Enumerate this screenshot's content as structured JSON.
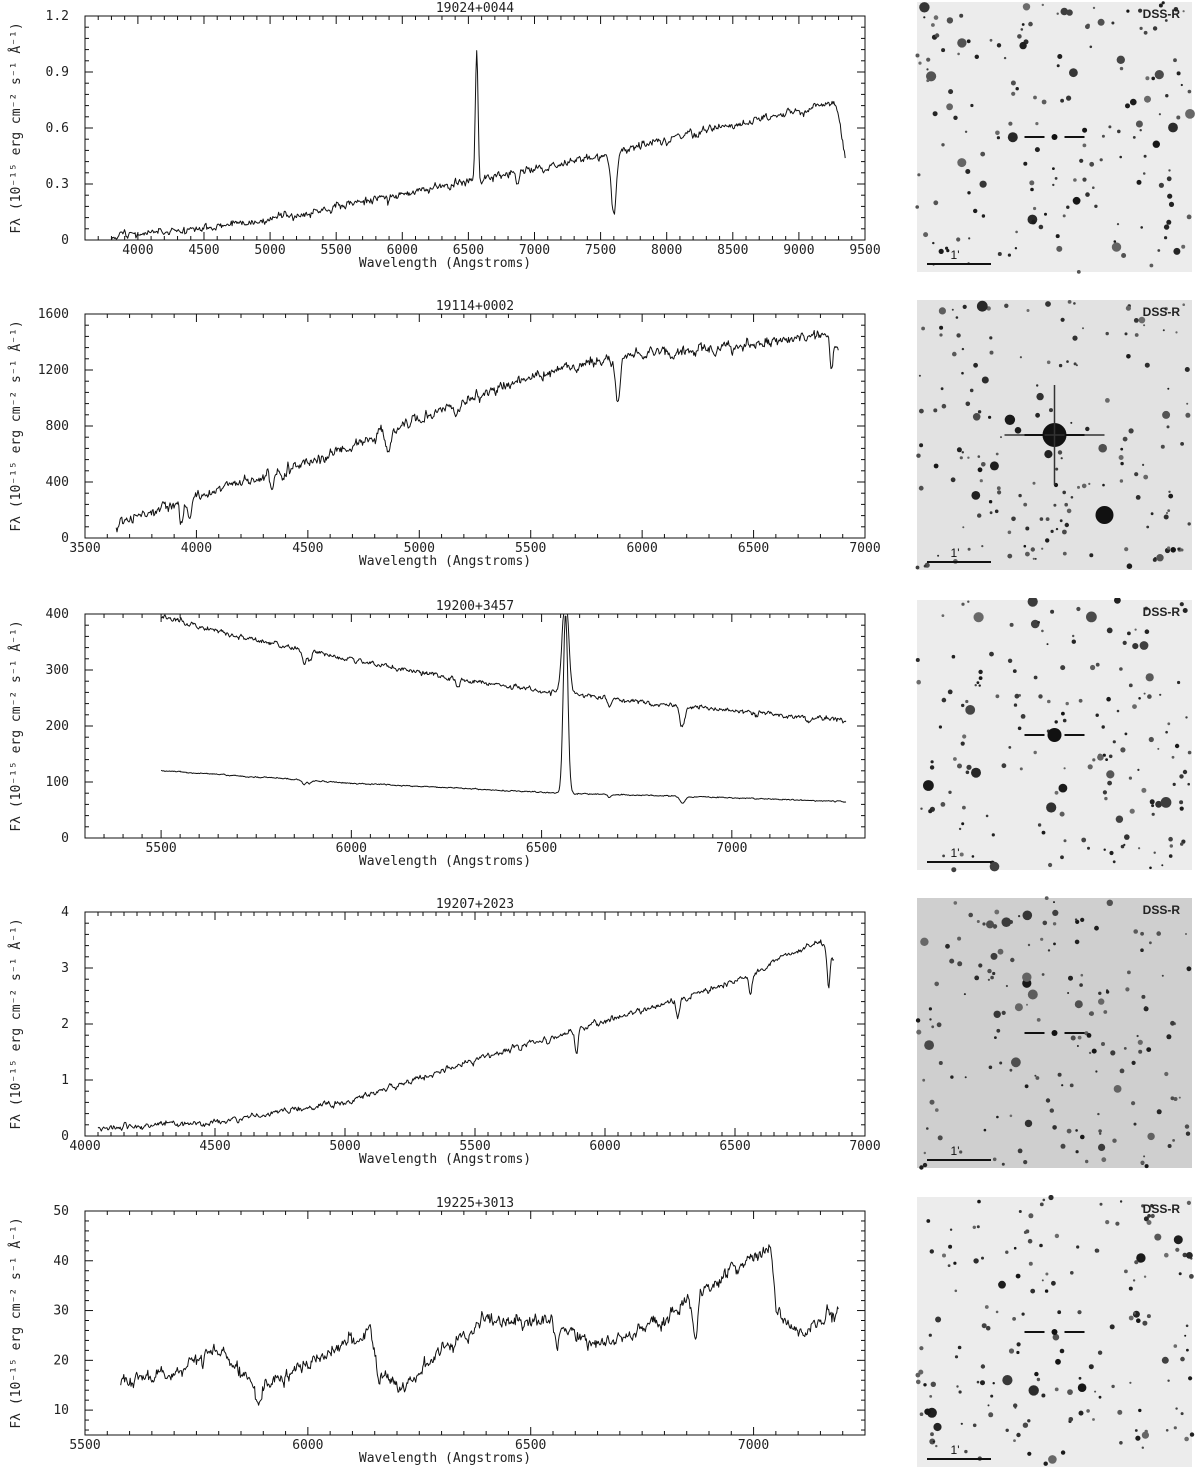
{
  "figure": {
    "survey_label": "DSS-R",
    "scale_label": "1'"
  },
  "chart_data": [
    {
      "type": "line",
      "title": "19024+0044",
      "xlabel": "Wavelength (Angstroms)",
      "ylabel": "Fλ (10⁻¹⁵ erg cm⁻² s⁻¹ Å⁻¹)",
      "xlim": [
        3600,
        9500
      ],
      "ylim": [
        0,
        1.2
      ],
      "xticks": [
        4000,
        4500,
        5000,
        5500,
        6000,
        6500,
        7000,
        7500,
        8000,
        8500,
        9000,
        9500
      ],
      "yticks": [
        0,
        0.3,
        0.6,
        0.9,
        1.2
      ],
      "ytick_labels": [
        "0",
        "0.3",
        "0.6",
        "0.9",
        "1.2"
      ],
      "x_range": [
        3800,
        9350
      ],
      "continuum": [
        [
          3800,
          0.02
        ],
        [
          4500,
          0.06
        ],
        [
          5000,
          0.11
        ],
        [
          5500,
          0.18
        ],
        [
          6000,
          0.25
        ],
        [
          6500,
          0.31
        ],
        [
          7000,
          0.38
        ],
        [
          7500,
          0.45
        ],
        [
          8000,
          0.54
        ],
        [
          8500,
          0.62
        ],
        [
          9000,
          0.69
        ],
        [
          9250,
          0.73
        ],
        [
          9290,
          0.71
        ],
        [
          9350,
          0.45
        ]
      ],
      "features": [
        [
          6563,
          0.72,
          10
        ],
        [
          7600,
          -0.35,
          18
        ],
        [
          6870,
          -0.05,
          10
        ],
        [
          5890,
          -0.03,
          8
        ]
      ],
      "noise": 0.02
    },
    {
      "type": "line",
      "title": "19114+0002",
      "xlabel": "Wavelength (Angstroms)",
      "ylabel": "Fλ (10⁻¹⁵ erg cm⁻² s⁻¹ Å⁻¹)",
      "xlim": [
        3500,
        7000
      ],
      "ylim": [
        0,
        1600
      ],
      "xticks": [
        3500,
        4000,
        4500,
        5000,
        5500,
        6000,
        6500,
        7000
      ],
      "yticks": [
        0,
        400,
        800,
        1200,
        1600
      ],
      "ytick_labels": [
        "0",
        "400",
        "800",
        "1200",
        "1600"
      ],
      "x_range": [
        3640,
        6880
      ],
      "continuum": [
        [
          3640,
          100
        ],
        [
          3800,
          190
        ],
        [
          4000,
          300
        ],
        [
          4500,
          530
        ],
        [
          5000,
          860
        ],
        [
          5500,
          1160
        ],
        [
          6000,
          1320
        ],
        [
          6500,
          1380
        ],
        [
          6850,
          1460
        ],
        [
          6880,
          1320
        ]
      ],
      "features": [
        [
          3934,
          -160,
          8
        ],
        [
          3968,
          -130,
          8
        ],
        [
          4340,
          -100,
          8
        ],
        [
          4861,
          -160,
          10
        ],
        [
          5170,
          -90,
          10
        ],
        [
          5890,
          -300,
          10
        ],
        [
          6136,
          -80,
          8
        ],
        [
          6850,
          -250,
          8
        ]
      ],
      "noise": 35
    },
    {
      "type": "line",
      "title": "19200+3457",
      "xlabel": "Wavelength (Angstroms)",
      "ylabel": "Fλ (10⁻¹⁵ erg cm⁻² s⁻¹ Å⁻¹)",
      "xlim": [
        5300,
        7350
      ],
      "ylim": [
        0,
        400
      ],
      "xticks": [
        5500,
        6000,
        6500,
        7000
      ],
      "yticks": [
        0,
        100,
        200,
        300,
        400
      ],
      "ytick_labels": [
        "0",
        "100",
        "200",
        "300",
        "400"
      ],
      "series": [
        {
          "name": "",
          "x_range": [
            5500,
            7300
          ],
          "continuum": [
            [
              5500,
              395
            ],
            [
              5700,
              360
            ],
            [
              6000,
              318
            ],
            [
              6300,
              282
            ],
            [
              6550,
              258
            ],
            [
              6800,
              240
            ],
            [
              7000,
              228
            ],
            [
              7300,
              210
            ]
          ],
          "features": [
            [
              6563,
              190,
              8
            ],
            [
              5876,
              -25,
              5
            ],
            [
              5890,
              -20,
              4
            ],
            [
              6280,
              -12,
              6
            ],
            [
              6678,
              -15,
              4
            ],
            [
              6870,
              -35,
              7
            ],
            [
              7065,
              -10,
              4
            ],
            [
              7200,
              -10,
              6
            ]
          ],
          "noise": 4
        },
        {
          "name": "",
          "x_range": [
            5500,
            7300
          ],
          "continuum": [
            [
              5500,
              120
            ],
            [
              6000,
              98
            ],
            [
              6550,
              80
            ],
            [
              7000,
              72
            ],
            [
              7300,
              65
            ]
          ],
          "features": [
            [
              6563,
              320,
              6
            ],
            [
              5876,
              -8,
              5
            ],
            [
              5890,
              -6,
              4
            ],
            [
              6678,
              -6,
              4
            ],
            [
              6870,
              -12,
              7
            ]
          ],
          "noise": 1
        }
      ]
    },
    {
      "type": "line",
      "title": "19207+2023",
      "xlabel": "Wavelength (Angstroms)",
      "ylabel": "Fλ (10⁻¹⁵ erg cm⁻² s⁻¹ Å⁻¹)",
      "xlim": [
        4000,
        7000
      ],
      "ylim": [
        0,
        4
      ],
      "xticks": [
        4000,
        4500,
        5000,
        5500,
        6000,
        6500,
        7000
      ],
      "yticks": [
        0,
        1,
        2,
        3,
        4
      ],
      "ytick_labels": [
        "0",
        "1",
        "2",
        "3",
        "4"
      ],
      "x_range": [
        4050,
        6880
      ],
      "continuum": [
        [
          4050,
          0.15
        ],
        [
          4500,
          0.25
        ],
        [
          5000,
          0.6
        ],
        [
          5500,
          1.35
        ],
        [
          6000,
          2.05
        ],
        [
          6500,
          2.75
        ],
        [
          6750,
          3.35
        ],
        [
          6830,
          3.45
        ],
        [
          6880,
          3.1
        ]
      ],
      "features": [
        [
          5890,
          -0.45,
          6
        ],
        [
          5780,
          -0.15,
          5
        ],
        [
          6280,
          -0.3,
          6
        ],
        [
          6560,
          -0.4,
          6
        ],
        [
          6860,
          -0.6,
          5
        ]
      ],
      "noise": 0.05
    },
    {
      "type": "line",
      "title": "19225+3013",
      "xlabel": "Wavelength (Angstroms)",
      "ylabel": "Fλ (10⁻¹⁵ erg cm⁻² s⁻¹ Å⁻¹)",
      "xlim": [
        5500,
        7250
      ],
      "ylim": [
        5,
        50
      ],
      "xticks": [
        5500,
        6000,
        6500,
        7000
      ],
      "yticks": [
        10,
        20,
        30,
        40,
        50
      ],
      "ytick_labels": [
        "10",
        "20",
        "30",
        "40",
        "50"
      ],
      "x_range": [
        5580,
        7190
      ],
      "continuum": [
        [
          5580,
          16
        ],
        [
          5700,
          18
        ],
        [
          5800,
          22
        ],
        [
          5880,
          15
        ],
        [
          5950,
          17
        ],
        [
          6050,
          22
        ],
        [
          6140,
          26
        ],
        [
          6160,
          17
        ],
        [
          6220,
          15
        ],
        [
          6300,
          22
        ],
        [
          6400,
          28
        ],
        [
          6550,
          28
        ],
        [
          6650,
          23
        ],
        [
          6800,
          28
        ],
        [
          6950,
          38
        ],
        [
          7040,
          42
        ],
        [
          7050,
          30
        ],
        [
          7100,
          25
        ],
        [
          7190,
          30
        ]
      ],
      "features": [
        [
          5890,
          -5,
          5
        ],
        [
          6870,
          -7,
          5
        ],
        [
          6560,
          -5,
          5
        ]
      ],
      "noise": 1.3
    }
  ]
}
